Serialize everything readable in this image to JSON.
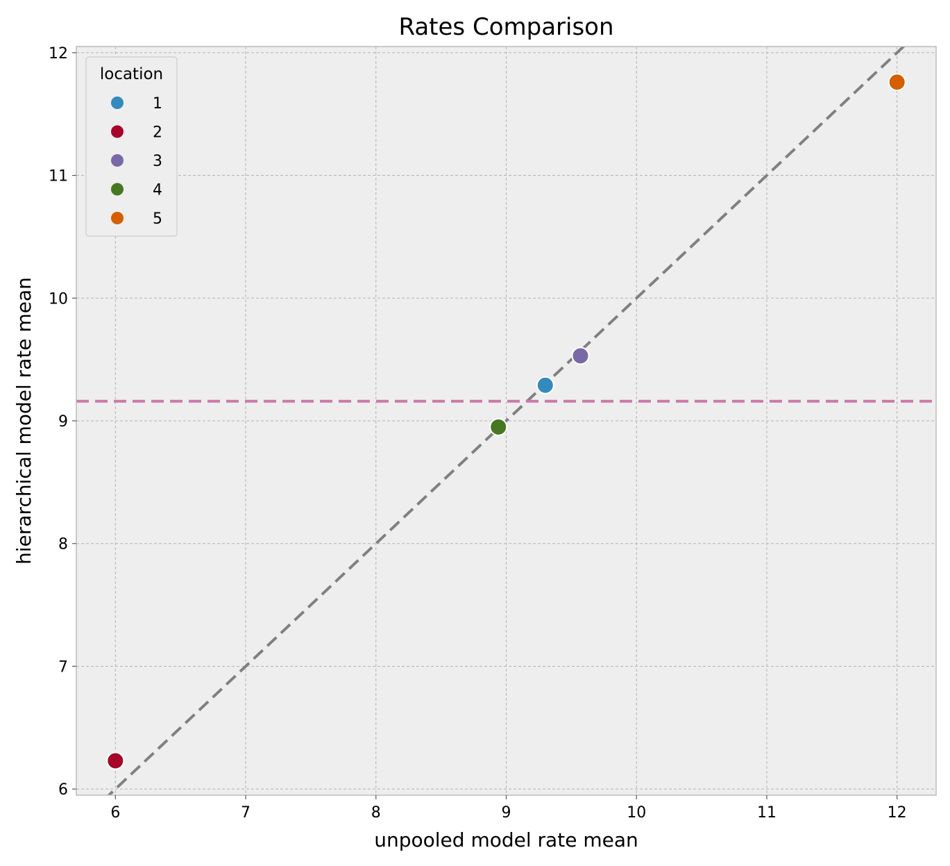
{
  "chart_data": {
    "type": "scatter",
    "title": "Rates Comparison",
    "xlabel": "unpooled model rate mean",
    "ylabel": "hierarchical model rate mean",
    "xlim": [
      5.7,
      12.3
    ],
    "ylim": [
      5.95,
      12.05
    ],
    "xticks": [
      6,
      7,
      8,
      9,
      10,
      11,
      12
    ],
    "yticks": [
      6,
      7,
      8,
      9,
      10,
      11,
      12
    ],
    "grid": true,
    "legend": {
      "title": "location",
      "placement": "top-left"
    },
    "series": [
      {
        "name": "1",
        "color": "#348ABD",
        "x": [
          9.3
        ],
        "y": [
          9.29
        ]
      },
      {
        "name": "2",
        "color": "#A60628",
        "x": [
          6.0
        ],
        "y": [
          6.23
        ]
      },
      {
        "name": "3",
        "color": "#7A68A6",
        "x": [
          9.57
        ],
        "y": [
          9.53
        ]
      },
      {
        "name": "4",
        "color": "#467821",
        "x": [
          8.94
        ],
        "y": [
          8.95
        ]
      },
      {
        "name": "5",
        "color": "#D55E00",
        "x": [
          12.0
        ],
        "y": [
          11.76
        ]
      }
    ],
    "reference_lines": [
      {
        "kind": "diagonal",
        "color": "#808080",
        "style": "dashed"
      },
      {
        "kind": "horizontal",
        "y": 9.16,
        "color": "#CC79A7",
        "style": "dashed"
      }
    ]
  },
  "colors": {
    "plot_background": "#EEEEEE",
    "grid": "#B2B2B2",
    "frame": "#BCBCBC"
  }
}
